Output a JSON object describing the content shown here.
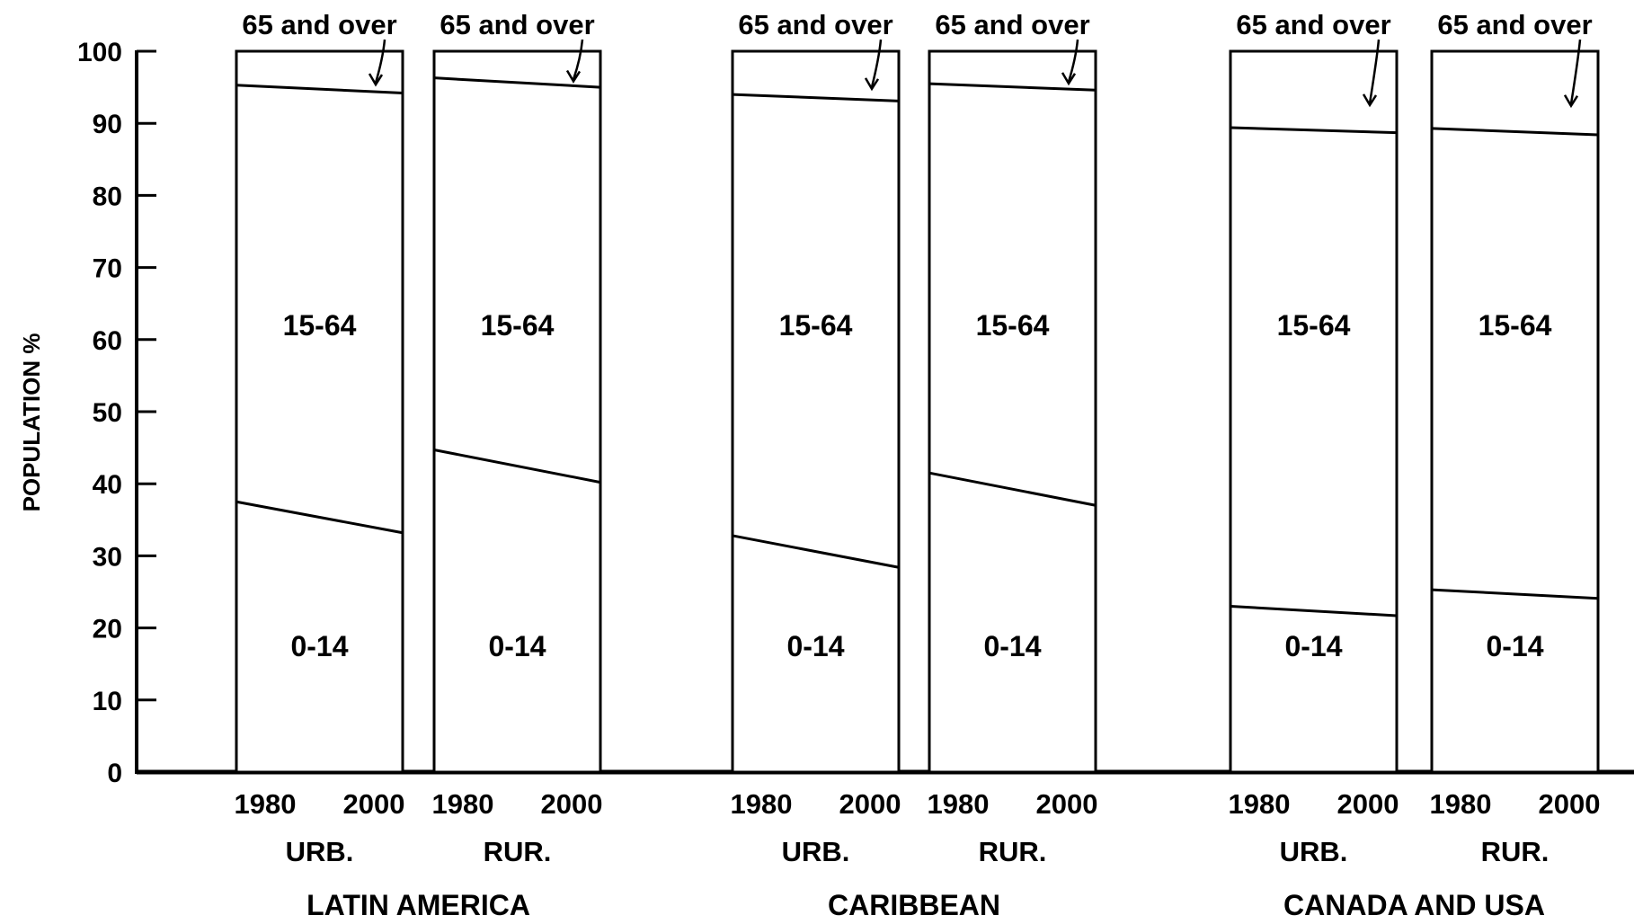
{
  "chart_data": {
    "type": "area",
    "ylabel": "POPULATION %",
    "ylim": [
      0,
      100
    ],
    "yticks": [
      "0",
      "10",
      "20",
      "30",
      "40",
      "50",
      "60",
      "70",
      "80",
      "90",
      "100"
    ],
    "x_labels": [
      "1980",
      "2000"
    ],
    "band_labels": {
      "young": "0-14",
      "middle": "15-64",
      "old": "65 and over"
    },
    "groups": [
      {
        "name": "LATIN AMERICA",
        "panels": [
          {
            "label": "URB.",
            "boundary_0_14": [
              37.5,
              33.2
            ],
            "boundary_15_64": [
              95.3,
              94.2
            ]
          },
          {
            "label": "RUR.",
            "boundary_0_14": [
              44.7,
              40.2
            ],
            "boundary_15_64": [
              96.3,
              95.0
            ]
          }
        ]
      },
      {
        "name": "CARIBBEAN",
        "panels": [
          {
            "label": "URB.",
            "boundary_0_14": [
              32.8,
              28.4
            ],
            "boundary_15_64": [
              94.0,
              93.1
            ]
          },
          {
            "label": "RUR.",
            "boundary_0_14": [
              41.5,
              37.0
            ],
            "boundary_15_64": [
              95.5,
              94.6
            ]
          }
        ]
      },
      {
        "name": "CANADA AND USA",
        "panels": [
          {
            "label": "URB.",
            "boundary_0_14": [
              23.0,
              21.7
            ],
            "boundary_15_64": [
              89.4,
              88.7
            ]
          },
          {
            "label": "RUR.",
            "boundary_0_14": [
              25.3,
              24.1
            ],
            "boundary_15_64": [
              89.3,
              88.4
            ]
          }
        ]
      }
    ]
  }
}
